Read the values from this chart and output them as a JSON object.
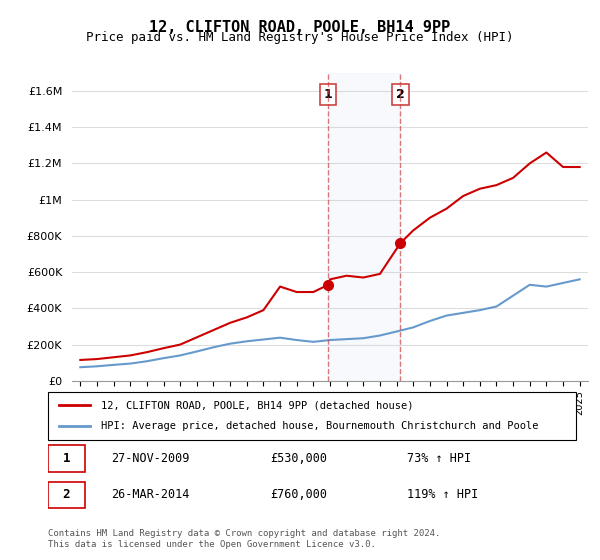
{
  "title": "12, CLIFTON ROAD, POOLE, BH14 9PP",
  "subtitle": "Price paid vs. HM Land Registry's House Price Index (HPI)",
  "legend_line1": "12, CLIFTON ROAD, POOLE, BH14 9PP (detached house)",
  "legend_line2": "HPI: Average price, detached house, Bournemouth Christchurch and Poole",
  "sale1_label": "1",
  "sale1_date": "27-NOV-2009",
  "sale1_price": "£530,000",
  "sale1_hpi": "73% ↑ HPI",
  "sale2_label": "2",
  "sale2_date": "26-MAR-2014",
  "sale2_price": "£760,000",
  "sale2_hpi": "119% ↑ HPI",
  "footer": "Contains HM Land Registry data © Crown copyright and database right 2024.\nThis data is licensed under the Open Government Licence v3.0.",
  "hpi_color": "#6699cc",
  "price_color": "#cc0000",
  "sale_marker_color": "#cc0000",
  "sale1_x": 2009.9,
  "sale1_y": 530000,
  "sale2_x": 2014.23,
  "sale2_y": 760000,
  "ylim": [
    0,
    1700000
  ],
  "xlim": [
    1994.5,
    2025.5
  ],
  "hpi_years": [
    1995,
    1996,
    1997,
    1998,
    1999,
    2000,
    2001,
    2002,
    2003,
    2004,
    2005,
    2006,
    2007,
    2008,
    2009,
    2010,
    2011,
    2012,
    2013,
    2014,
    2015,
    2016,
    2017,
    2018,
    2019,
    2020,
    2021,
    2022,
    2023,
    2024,
    2025
  ],
  "hpi_values": [
    75000,
    80000,
    88000,
    95000,
    108000,
    125000,
    140000,
    162000,
    185000,
    205000,
    218000,
    228000,
    238000,
    225000,
    215000,
    225000,
    230000,
    235000,
    250000,
    272000,
    295000,
    330000,
    360000,
    375000,
    390000,
    410000,
    470000,
    530000,
    520000,
    540000,
    560000
  ],
  "price_years": [
    1995,
    1996,
    1997,
    1998,
    1999,
    2000,
    2001,
    2002,
    2003,
    2004,
    2005,
    2006,
    2007,
    2008,
    2009,
    2009.9,
    2010,
    2011,
    2012,
    2013,
    2014.23,
    2015,
    2016,
    2017,
    2018,
    2019,
    2020,
    2021,
    2022,
    2023,
    2024,
    2025
  ],
  "price_values": [
    115000,
    120000,
    130000,
    140000,
    158000,
    180000,
    200000,
    240000,
    280000,
    320000,
    350000,
    390000,
    520000,
    490000,
    490000,
    530000,
    560000,
    580000,
    570000,
    590000,
    760000,
    830000,
    900000,
    950000,
    1020000,
    1060000,
    1080000,
    1120000,
    1200000,
    1260000,
    1180000,
    1180000
  ]
}
